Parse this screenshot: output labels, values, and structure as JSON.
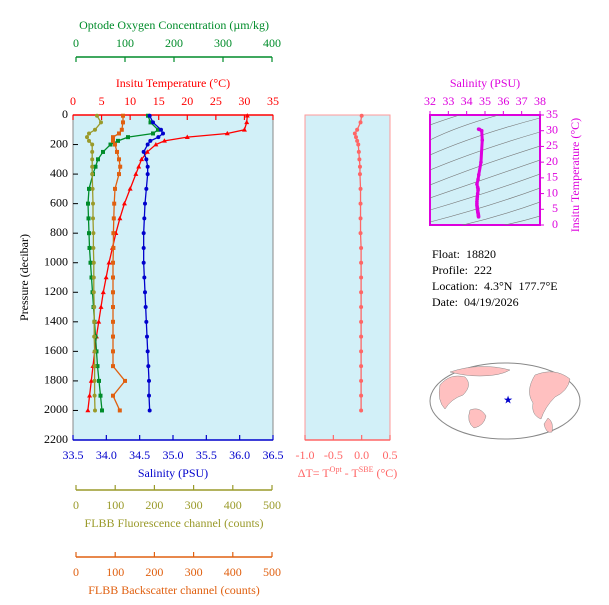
{
  "chart_data": [
    {
      "type": "profile",
      "ylabel": "Pressure (decibar)",
      "ylim": [
        0,
        2200
      ],
      "invert_y": true,
      "yticks": [
        0,
        200,
        400,
        600,
        800,
        1000,
        1200,
        1400,
        1600,
        1800,
        2000,
        2200
      ],
      "pressure": [
        5,
        50,
        100,
        125,
        150,
        175,
        200,
        250,
        300,
        350,
        400,
        500,
        600,
        700,
        800,
        900,
        1000,
        1100,
        1200,
        1300,
        1400,
        1500,
        1600,
        1700,
        1800,
        1900,
        2000
      ],
      "x_axes": [
        {
          "label": "Insitu Temperature (°C)",
          "color": "#ff0000",
          "xlim": [
            0,
            35
          ],
          "xticks": [
            0,
            5,
            10,
            15,
            20,
            25,
            30,
            35
          ]
        },
        {
          "label": "Optode Oxygen Concentration (µm/kg)",
          "color": "#008c2a",
          "xlim": [
            0,
            400
          ],
          "xticks": [
            0,
            100,
            200,
            300,
            400
          ]
        },
        {
          "label": "Salinity (PSU)",
          "color": "#0000cc",
          "xlim": [
            33.5,
            36.5
          ],
          "xticks": [
            33.5,
            {
              "value": 34,
              "label": "34.0"
            },
            34.5,
            {
              "value": 35,
              "label": "35.0"
            },
            35.5,
            {
              "value": 36,
              "label": "36.0"
            },
            36.5
          ]
        },
        {
          "label": "FLBB Fluorescence channel (counts)",
          "color": "#9a9a2a",
          "xlim": [
            0,
            500
          ],
          "xticks": [
            0,
            100,
            200,
            300,
            400,
            500
          ]
        },
        {
          "label": "FLBB Backscatter channel (counts)",
          "color": "#e06010",
          "xlim": [
            0,
            500
          ],
          "xticks": [
            0,
            100,
            200,
            300,
            400,
            500
          ]
        }
      ],
      "series": [
        {
          "axis": 0,
          "color": "#ff0000",
          "marker": "triangle",
          "values": [
            30.5,
            30.4,
            30.0,
            27,
            20,
            16,
            14.5,
            13,
            12,
            11.5,
            11,
            10,
            9,
            8.2,
            7.5,
            6.9,
            6.3,
            5.8,
            5.3,
            4.9,
            4.5,
            4.1,
            3.8,
            3.5,
            3.2,
            2.9,
            2.6
          ]
        },
        {
          "axis": 1,
          "color": "#008c2a",
          "marker": "square",
          "values": [
            150,
            155,
            170,
            160,
            110,
            90,
            75,
            60,
            50,
            45,
            40,
            32,
            30,
            31,
            32,
            33,
            35,
            37,
            39,
            41,
            43,
            45,
            47,
            49,
            52,
            55,
            58
          ]
        },
        {
          "axis": 2,
          "color": "#0000cc",
          "marker": "circle",
          "values": [
            34.65,
            34.7,
            34.82,
            34.85,
            34.78,
            34.66,
            34.62,
            34.56,
            34.6,
            34.62,
            34.62,
            34.6,
            34.58,
            34.57,
            34.56,
            34.56,
            34.56,
            34.57,
            34.58,
            34.59,
            34.6,
            34.61,
            34.62,
            34.63,
            34.64,
            34.64,
            34.65
          ]
        },
        {
          "axis": 3,
          "color": "#9a9a2a",
          "marker": "circle",
          "values": [
            60,
            70,
            55,
            40,
            35,
            40,
            48,
            48,
            48,
            48,
            48,
            49,
            50,
            50,
            51,
            51,
            52,
            52,
            52,
            53,
            53,
            53,
            54,
            54,
            54,
            54,
            55
          ]
        },
        {
          "axis": 4,
          "color": "#e06010",
          "marker": "square",
          "values": [
            125,
            125,
            122,
            115,
            100,
            100,
            105,
            110,
            115,
            118,
            115,
            105,
            103,
            102,
            101,
            101,
            100,
            100,
            100,
            100,
            100,
            100,
            100,
            100,
            130,
            100,
            117
          ]
        }
      ]
    },
    {
      "type": "profile",
      "ylim": [
        0,
        2200
      ],
      "invert_y": true,
      "pressure": [
        5,
        50,
        100,
        125,
        150,
        175,
        200,
        250,
        300,
        350,
        400,
        500,
        600,
        700,
        800,
        900,
        1000,
        1100,
        1200,
        1300,
        1400,
        1500,
        1600,
        1700,
        1800,
        1900,
        2000
      ],
      "xlabel": [
        "ΔT= T",
        "Opt",
        " - T",
        "SBE",
        " (°C)"
      ],
      "x_axes": [
        {
          "color": "#ff6666",
          "xlim": [
            -1,
            0.5
          ],
          "xticks": [
            {
              "value": -1,
              "label": "-1.0"
            },
            -0.5,
            {
              "value": 0,
              "label": "0.0"
            },
            0.5
          ]
        }
      ],
      "series": [
        {
          "axis": 0,
          "color": "#ff6666",
          "marker": "circle",
          "values": [
            0.0,
            -0.02,
            -0.08,
            -0.12,
            -0.1,
            -0.08,
            -0.06,
            -0.05,
            -0.04,
            -0.03,
            -0.03,
            -0.02,
            -0.02,
            -0.02,
            -0.02,
            -0.01,
            -0.01,
            -0.01,
            -0.01,
            -0.01,
            -0.01,
            -0.01,
            -0.01,
            -0.01,
            -0.01,
            -0.01,
            -0.01
          ]
        }
      ]
    },
    {
      "type": "ts_diagram",
      "xlabel": "Salinity (PSU)",
      "ylabel": "Insitu Temperature (°C)",
      "color": "#dd00dd",
      "xlim": [
        32,
        38
      ],
      "xticks": [
        32,
        33,
        34,
        35,
        36,
        37,
        38
      ],
      "ylim": [
        0,
        35
      ],
      "yticks": [
        0,
        5,
        10,
        15,
        20,
        25,
        30,
        35
      ]
    }
  ],
  "info": [
    "Float:  18820",
    "Profile:  222",
    "Location:  4.3°N  177.7°E",
    "Date:  04/19/2026"
  ]
}
